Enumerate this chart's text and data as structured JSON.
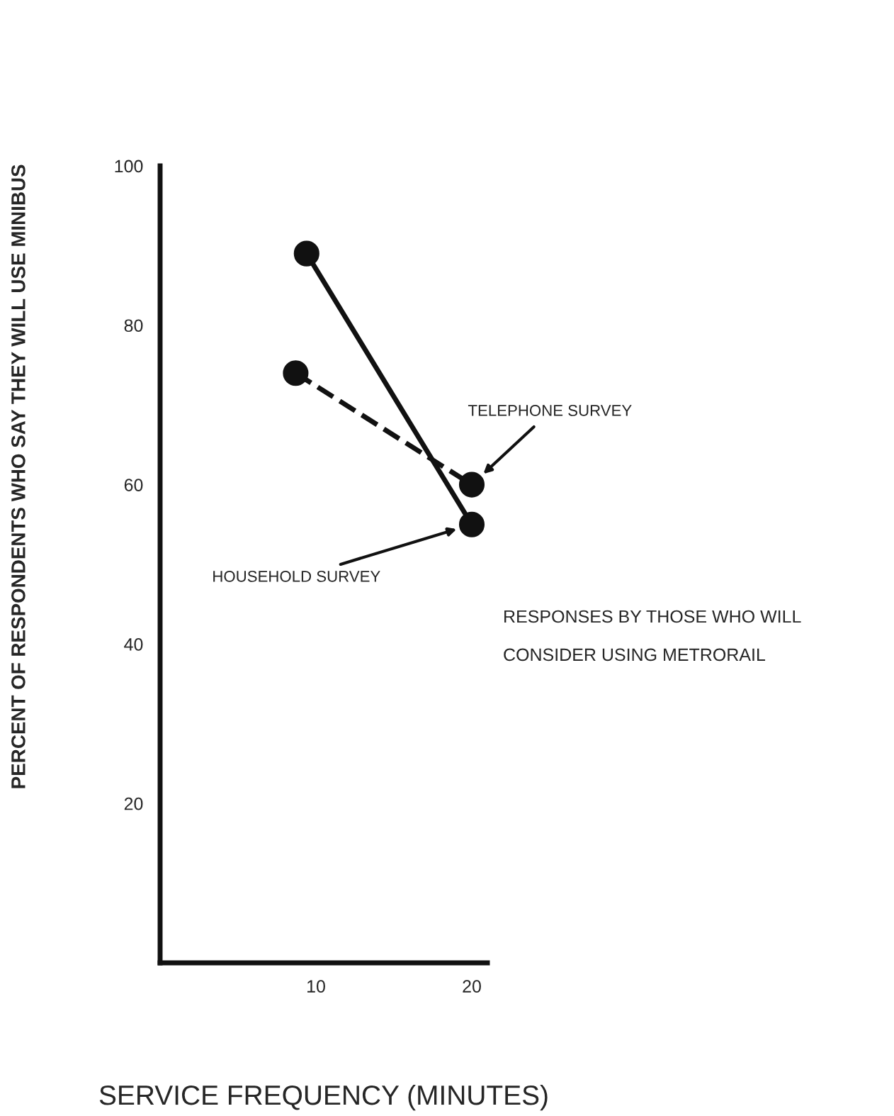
{
  "chart_data": {
    "type": "line",
    "xlabel": "SERVICE FREQUENCY (MINUTES)",
    "ylabel": "PERCENT OF RESPONDENTS WHO SAY THEY WILL USE MINIBUS",
    "series": [
      {
        "name": "HOUSEHOLD SURVEY",
        "color": "#111111",
        "x": [
          9.4,
          20
        ],
        "values": [
          89,
          55
        ],
        "line_style": "solid"
      },
      {
        "name": "TELEPHONE SURVEY",
        "color": "#111111",
        "x": [
          8.7,
          20
        ],
        "values": [
          74,
          60
        ],
        "line_style": "dashed"
      }
    ],
    "xlim": [
      0,
      21
    ],
    "ylim": [
      0,
      100
    ],
    "xticks": [
      10,
      20
    ],
    "yticks": [
      20,
      40,
      60,
      80,
      100
    ],
    "marker": "circle",
    "grid": false,
    "legend": false,
    "annotations": [
      "RESPONSES BY THOSE WHO WILL\n\nCONSIDER USING METRORAIL"
    ]
  }
}
